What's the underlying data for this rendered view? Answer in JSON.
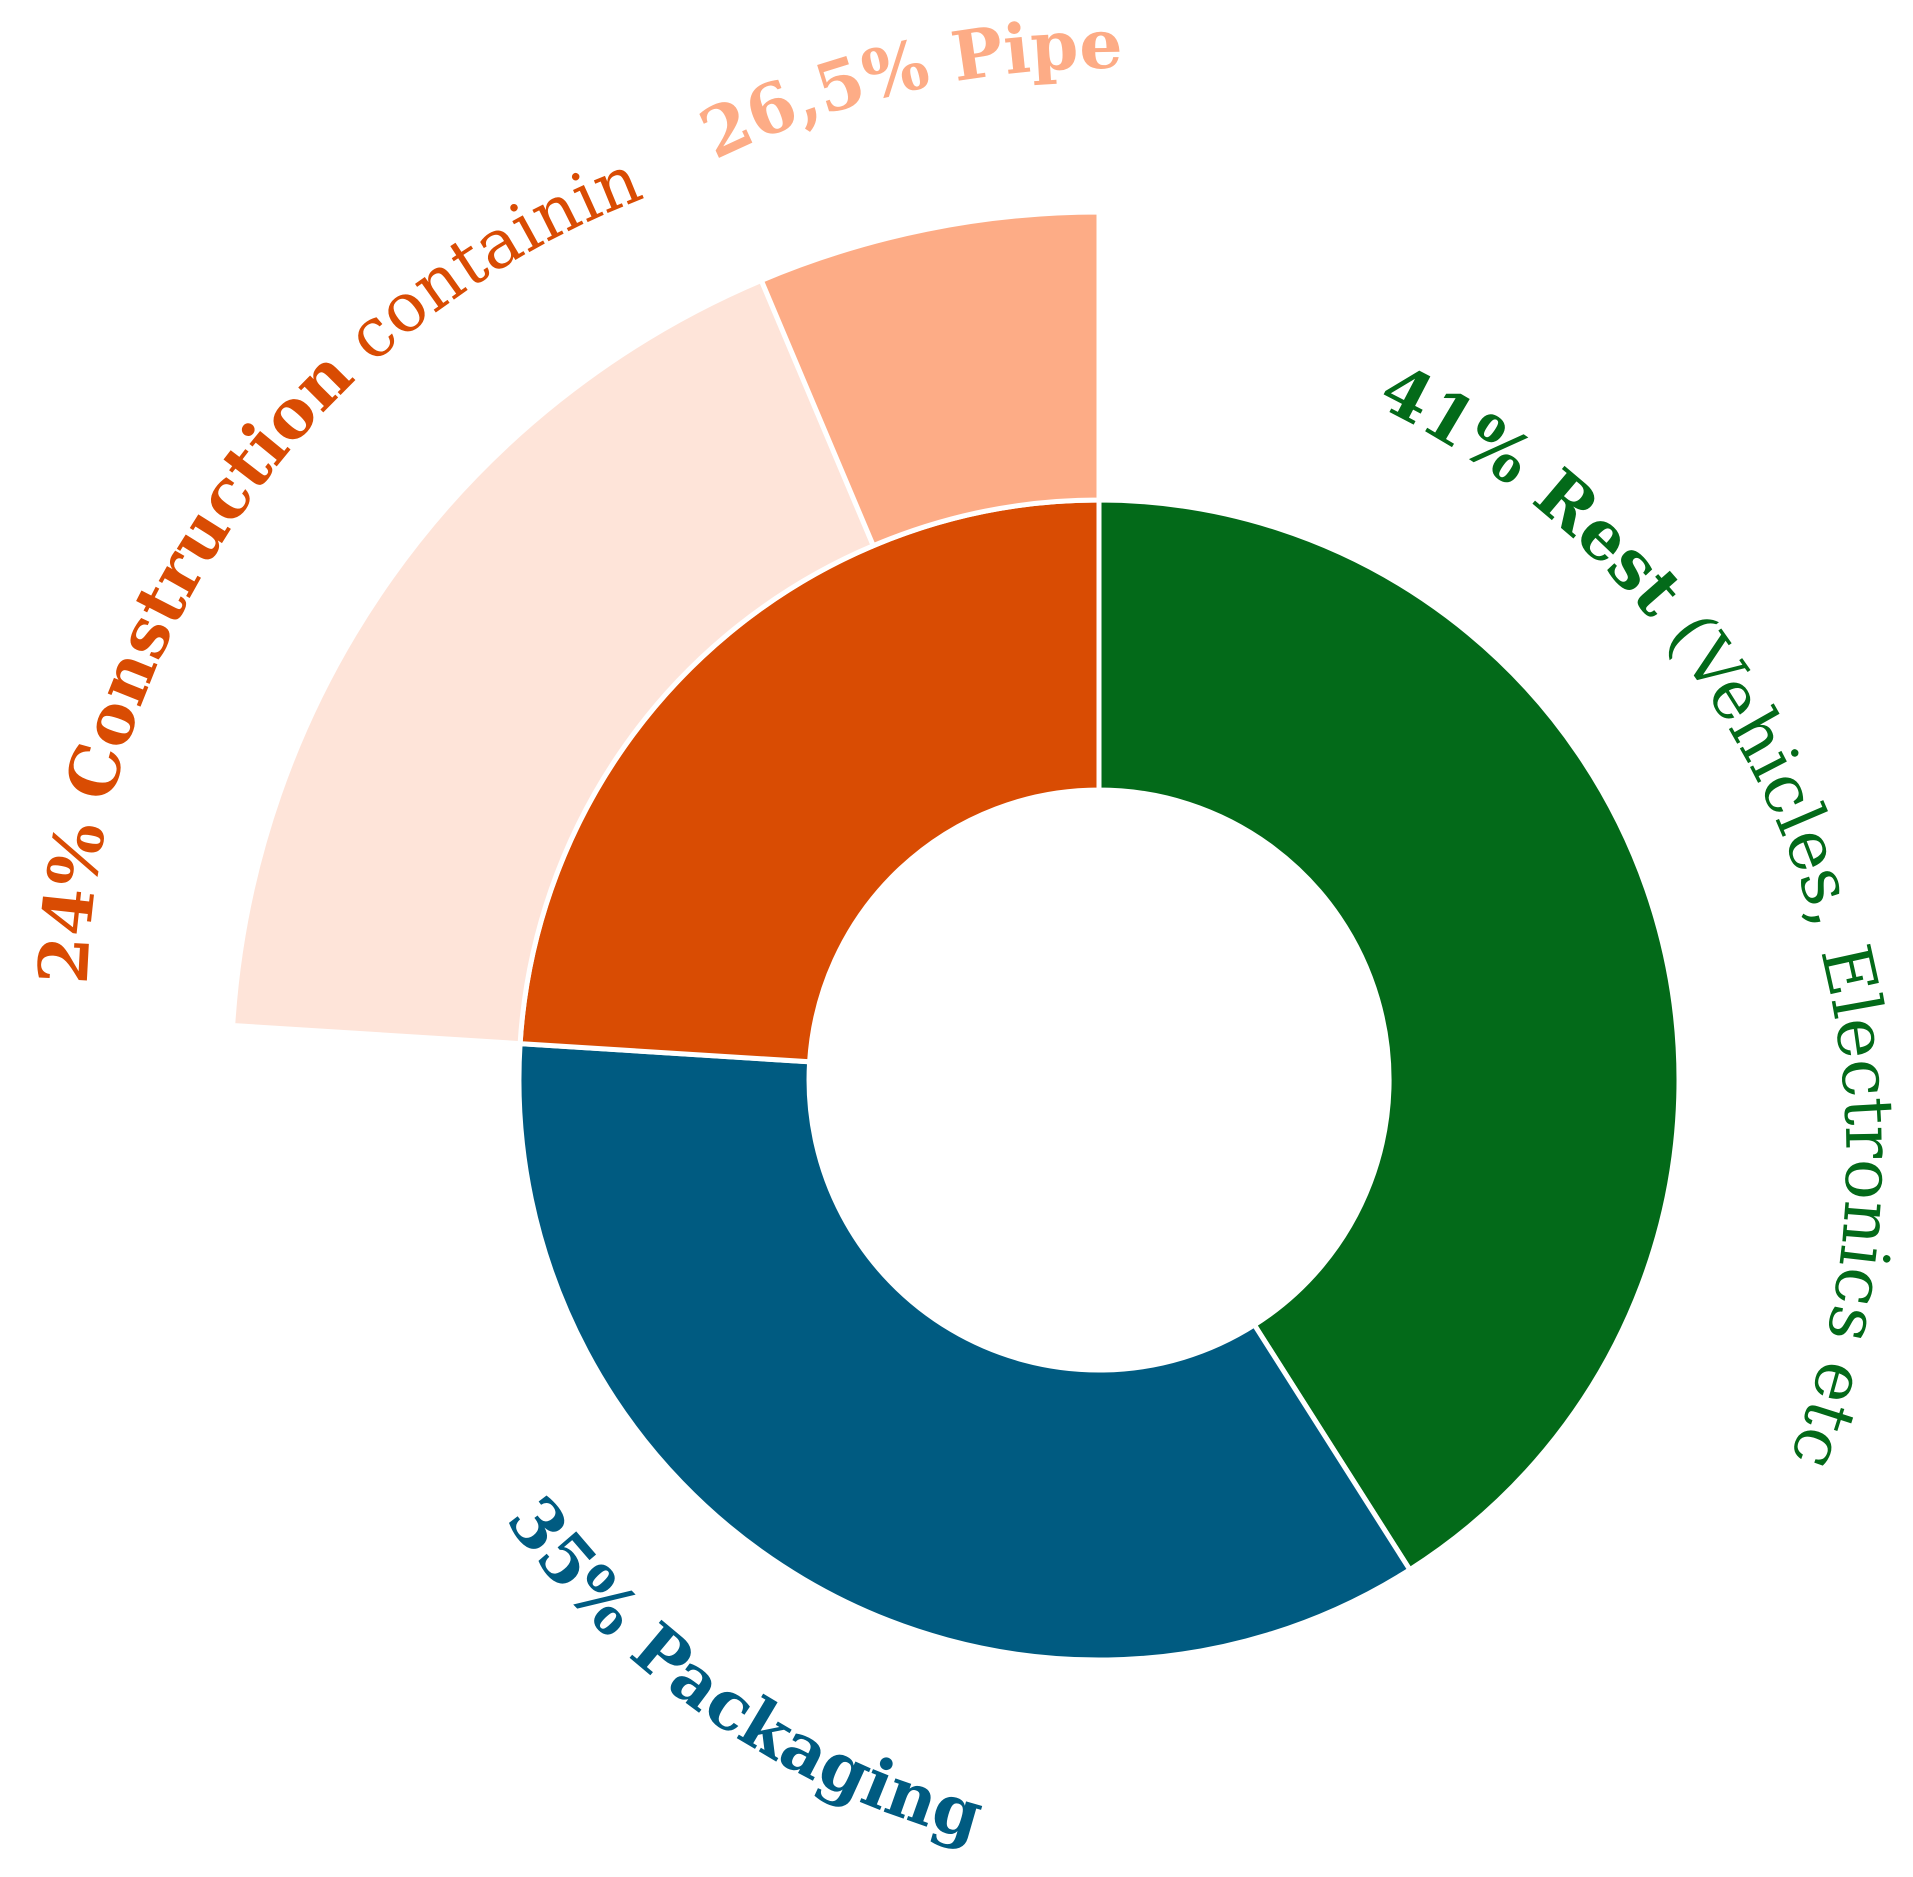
{
  "chart_data": {
    "type": "pie",
    "subtype": "sunburst",
    "slices": [
      {
        "key": "rest",
        "percent": "41%",
        "value": 41,
        "label": "Rest",
        "detail": "(Vehicles, Electronics etc.)",
        "color": "#036a19"
      },
      {
        "key": "packaging",
        "percent": "35%",
        "value": 35,
        "label": "Packaging",
        "detail": "",
        "color": "#005b81"
      },
      {
        "key": "construction",
        "percent": "24%",
        "value": 24,
        "label": "Construction",
        "detail": "containing",
        "color": "#d94c03"
      }
    ],
    "sub_slices": [
      {
        "parent": "construction",
        "key": "pipes",
        "percent": "26,5%",
        "value": 26.5,
        "label": "Pipes",
        "color": "#fdac86"
      },
      {
        "parent": "construction",
        "key": "other",
        "percent": "",
        "value": 73.5,
        "label": "",
        "color": "#fee4d9"
      }
    ]
  }
}
